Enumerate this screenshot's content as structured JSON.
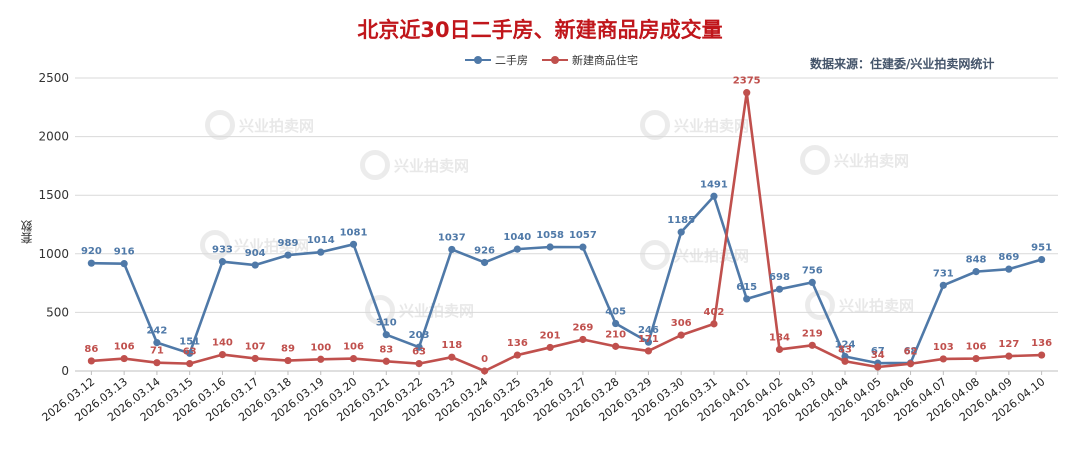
{
  "title": "北京近30日二手房、新建商品房成交量",
  "source": "数据来源：住建委/兴业拍卖网统计",
  "watermark": "兴业拍卖网",
  "chart_data": {
    "type": "line",
    "ylabel": "套数",
    "ylim": [
      0,
      2500
    ],
    "yticks": [
      0,
      500,
      1000,
      1500,
      2000,
      2500
    ],
    "grid": true,
    "legend_position": "top-center",
    "x": [
      "2026.03.12",
      "2026.03.13",
      "2026.03.14",
      "2026.03.15",
      "2026.03.16",
      "2026.03.17",
      "2026.03.18",
      "2026.03.19",
      "2026.03.20",
      "2026.03.21",
      "2026.03.22",
      "2026.03.23",
      "2026.03.24",
      "2026.03.25",
      "2026.03.26",
      "2026.03.27",
      "2026.03.28",
      "2026.03.29",
      "2026.03.30",
      "2026.03.31",
      "2026.04.01",
      "2026.04.02",
      "2026.04.03",
      "2026.04.04",
      "2026.04.05",
      "2026.04.06",
      "2026.04.07",
      "2026.04.08",
      "2026.04.09",
      "2026.04.10"
    ],
    "series": [
      {
        "name": "二手房",
        "color": "#4f79a8",
        "values": [
          920,
          916,
          242,
          151,
          933,
          904,
          989,
          1014,
          1081,
          310,
          203,
          1037,
          926,
          1040,
          1058,
          1057,
          405,
          246,
          1185,
          1491,
          615,
          698,
          756,
          124,
          67,
          68,
          731,
          848,
          869,
          951
        ]
      },
      {
        "name": "新建商品住宅",
        "color": "#c0504d",
        "values": [
          86,
          106,
          71,
          63,
          140,
          107,
          89,
          100,
          106,
          83,
          63,
          118,
          0,
          136,
          201,
          269,
          210,
          171,
          306,
          402,
          2375,
          184,
          219,
          83,
          34,
          62,
          103,
          106,
          127,
          136
        ]
      }
    ]
  }
}
